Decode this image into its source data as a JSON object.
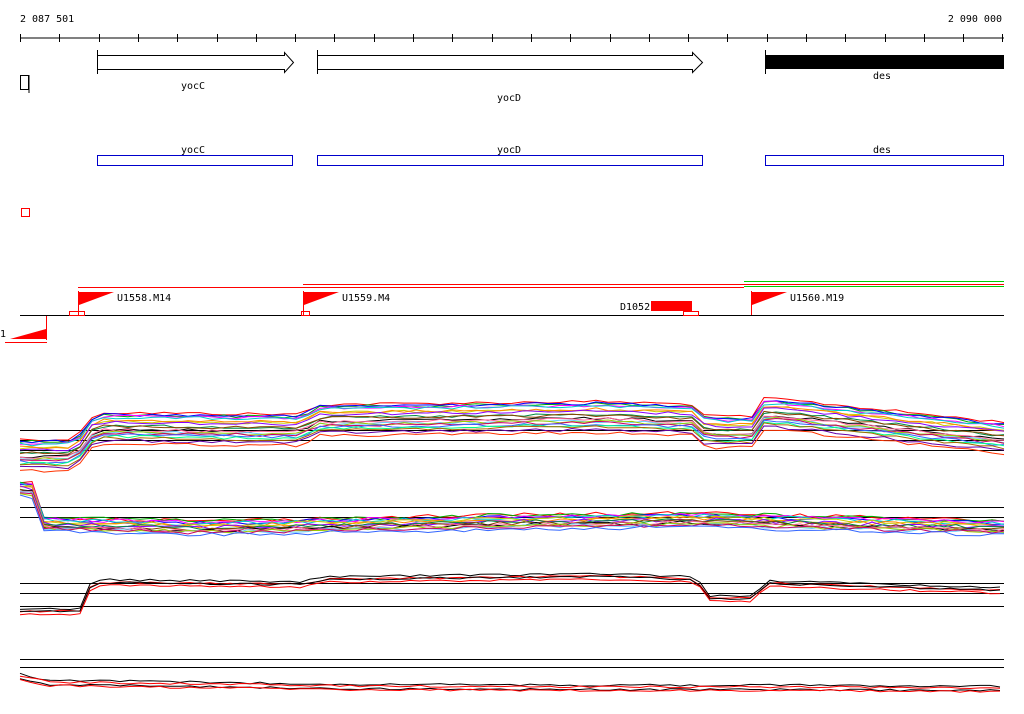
{
  "ruler": {
    "start_label": "2 087 501",
    "end_label": "2 090 000"
  },
  "genes": [
    {
      "name": "yocC",
      "strand": "forward",
      "style": "outline"
    },
    {
      "name": "yocD",
      "strand": "forward",
      "style": "outline"
    },
    {
      "name": "des",
      "strand": "forward",
      "style": "filled"
    }
  ],
  "gene_boxes": [
    {
      "name": "yocC"
    },
    {
      "name": "yocD"
    },
    {
      "name": "des"
    }
  ],
  "transcription_units": [
    {
      "name": "U1558.M14"
    },
    {
      "name": "U1559.M4"
    },
    {
      "name": "U1560.M19"
    }
  ],
  "terminator": {
    "name": "D1052"
  },
  "left_marker": {
    "label": "1"
  },
  "colors": {
    "gene_outline": "#000000",
    "gene_box": "#0000cc",
    "feature_red": "#ff0000",
    "feature_green": "#00cc00",
    "axis": "#000000"
  },
  "expression_panels": [
    {
      "name": "multi-condition-panel-1",
      "series_colors": [
        "#ff0000",
        "#00aa00",
        "#0000ff",
        "#ff00ff",
        "#00cccc",
        "#cccc00",
        "#ff8800",
        "#8800ff",
        "#008844",
        "#884400",
        "#000000",
        "#ff6699",
        "#66ccff",
        "#99cc00",
        "#cc0066",
        "#3366ff",
        "#00ff88",
        "#aa6600",
        "#6600aa",
        "#ff3300"
      ]
    },
    {
      "name": "multi-condition-panel-2",
      "series_colors": [
        "#ff0000",
        "#00aa00",
        "#0000ff",
        "#ff00ff",
        "#00cccc",
        "#cccc00",
        "#ff8800",
        "#8800ff",
        "#008844",
        "#884400",
        "#000000",
        "#ff6699",
        "#66ccff",
        "#99cc00",
        "#cc0066",
        "#3366ff"
      ]
    },
    {
      "name": "two-condition-panel-3",
      "series_colors": [
        "#000000",
        "#ff0000",
        "#000000",
        "#ff0000"
      ]
    },
    {
      "name": "two-condition-panel-4",
      "series_colors": [
        "#000000",
        "#ff0000",
        "#000000",
        "#ff0000"
      ]
    }
  ]
}
